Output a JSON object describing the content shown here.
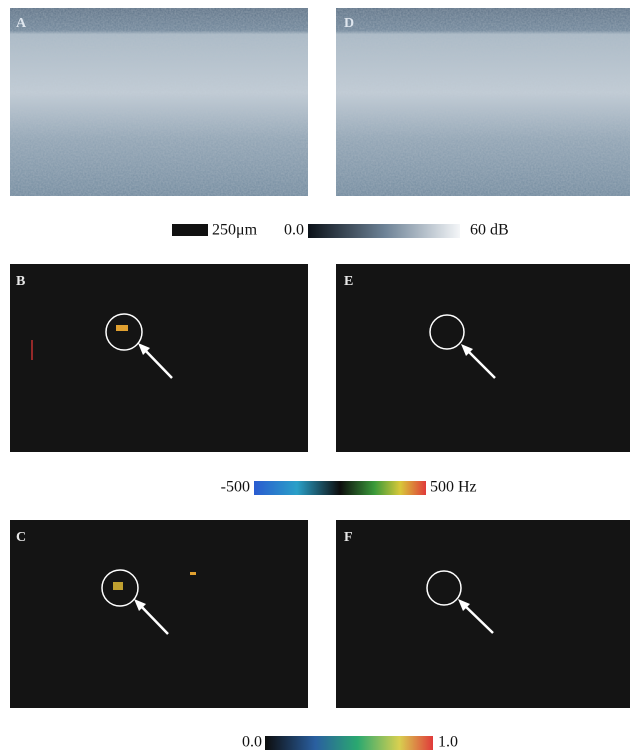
{
  "panels": [
    {
      "label": "A"
    },
    {
      "label": "B"
    },
    {
      "label": "C"
    },
    {
      "label": "D"
    },
    {
      "label": "E"
    },
    {
      "label": "F"
    }
  ],
  "scale_bar": {
    "label": "250μm"
  },
  "colorbars": [
    {
      "min_label": "0.0",
      "max_label": "60 dB"
    },
    {
      "min_label": "-500",
      "max_label": "500 Hz"
    },
    {
      "min_label": "0.0",
      "max_label": "1.0"
    }
  ]
}
